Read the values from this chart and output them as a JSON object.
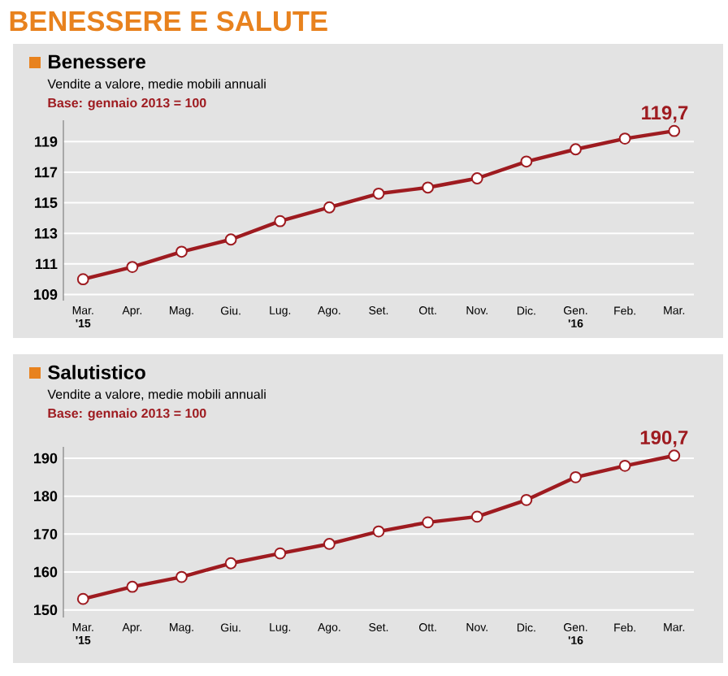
{
  "chart_data": [
    {
      "type": "line",
      "title": "Benessere",
      "subtitle": "Vendite a valore, medie mobili annuali",
      "categories": [
        "Mar. **'15**",
        "Apr.",
        "Mag.",
        "Giu.",
        "Lug.",
        "Ago.",
        "Set.",
        "Ott.",
        "Nov.",
        "Dic.",
        "Gen. **'16**",
        "Feb.",
        "Mar."
      ],
      "values": [
        110.0,
        110.8,
        111.8,
        112.6,
        113.8,
        114.7,
        115.6,
        116.0,
        116.6,
        117.7,
        118.5,
        119.2,
        119.7
      ],
      "color": "#9e1b20",
      "marker": "circle",
      "grid": "y",
      "ylim": [
        108.6,
        120.4
      ],
      "yticks": [
        109,
        111,
        113,
        115,
        117,
        119
      ],
      "annotations": [
        "Base: gennaio 2013 = 100",
        {
          "text": "119,7",
          "x": "Mar.",
          "y": 119.7
        },
        "BENESSERE E SALUTE"
      ]
    },
    {
      "type": "line",
      "title": "Salutistico",
      "subtitle": "Vendite a valore, medie mobili annuali",
      "categories": [
        "Mar. **'15**",
        "Apr.",
        "Mag.",
        "Giu.",
        "Lug.",
        "Ago.",
        "Set.",
        "Ott.",
        "Nov.",
        "Dic.",
        "Gen. **'16**",
        "Feb.",
        "Mar."
      ],
      "values": [
        152.9,
        156.1,
        158.7,
        162.3,
        164.9,
        167.4,
        170.7,
        173.1,
        174.6,
        179.0,
        185.0,
        188.0,
        190.7
      ],
      "color": "#9e1b20",
      "marker": "circle",
      "grid": "y",
      "ylim": [
        148,
        193
      ],
      "yticks": [
        150,
        160,
        170,
        180,
        190
      ],
      "annotations": [
        "Base: gennaio 2013 = 100",
        {
          "text": "190,7",
          "x": "Mar.",
          "y": 190.7
        }
      ]
    }
  ]
}
